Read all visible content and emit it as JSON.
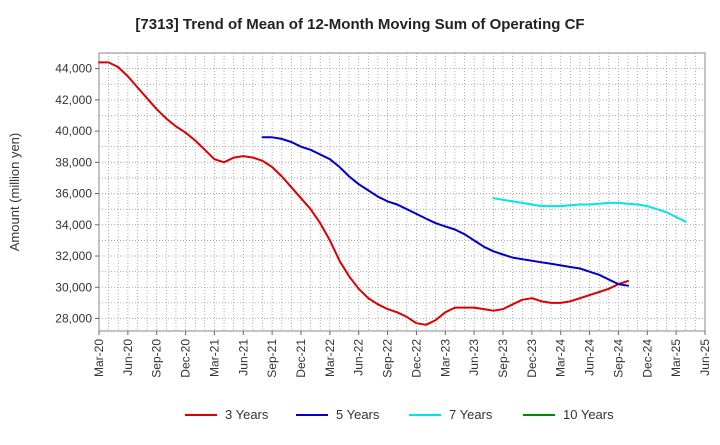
{
  "chart_data": {
    "type": "line",
    "title": "[7313]  Trend of Mean of 12-Month Moving Sum of Operating CF",
    "xlabel": "",
    "ylabel": "Amount (million yen)",
    "ylim": [
      27200,
      45000
    ],
    "yticks": [
      28000,
      30000,
      32000,
      34000,
      36000,
      38000,
      40000,
      42000,
      44000
    ],
    "ytick_labels": [
      "28,000",
      "30,000",
      "32,000",
      "34,000",
      "36,000",
      "38,000",
      "40,000",
      "42,000",
      "44,000"
    ],
    "x_start": "Mar-20",
    "x_end": "Jun-25",
    "xtick_labels": [
      "Mar-20",
      "Jun-20",
      "Sep-20",
      "Dec-20",
      "Mar-21",
      "Jun-21",
      "Sep-21",
      "Dec-21",
      "Mar-22",
      "Jun-22",
      "Sep-22",
      "Dec-22",
      "Mar-23",
      "Jun-23",
      "Sep-23",
      "Dec-23",
      "Mar-24",
      "Jun-24",
      "Sep-24",
      "Dec-24",
      "Mar-25",
      "Jun-25"
    ],
    "grid": true,
    "legend_position": "bottom",
    "series": [
      {
        "name": "3 Years",
        "color": "#dd0000",
        "start": "Mar-20",
        "values": [
          44400,
          44400,
          44100,
          43500,
          42800,
          42100,
          41400,
          40800,
          40300,
          39900,
          39400,
          38800,
          38200,
          38000,
          38300,
          38400,
          38300,
          38100,
          37700,
          37100,
          36400,
          35700,
          35000,
          34100,
          33000,
          31700,
          30700,
          29900,
          29300,
          28900,
          28600,
          28400,
          28100,
          27700,
          27600,
          27900,
          28400,
          28700,
          28700,
          28700,
          28600,
          28500,
          28600,
          28900,
          29200,
          29300,
          29100,
          29000,
          29000,
          29100,
          29300,
          29500,
          29700,
          29900,
          30200,
          30400
        ]
      },
      {
        "name": "5 Years",
        "color": "#0000cc",
        "start": "Aug-21",
        "values": [
          39600,
          39600,
          39500,
          39300,
          39000,
          38800,
          38500,
          38200,
          37700,
          37100,
          36600,
          36200,
          35800,
          35500,
          35300,
          35000,
          34700,
          34400,
          34100,
          33900,
          33700,
          33400,
          33000,
          32600,
          32300,
          32100,
          31900,
          31800,
          31700,
          31600,
          31500,
          31400,
          31300,
          31200,
          31000,
          30800,
          30500,
          30200,
          30100
        ]
      },
      {
        "name": "7 Years",
        "color": "#00e5e5",
        "start": "Aug-23",
        "values": [
          35700,
          35600,
          35500,
          35400,
          35300,
          35200,
          35200,
          35200,
          35250,
          35300,
          35300,
          35350,
          35400,
          35400,
          35350,
          35300,
          35200,
          35000,
          34800,
          34500,
          34200
        ]
      },
      {
        "name": "10 Years",
        "color": "#008800",
        "start": "Mar-25",
        "values": []
      }
    ]
  }
}
